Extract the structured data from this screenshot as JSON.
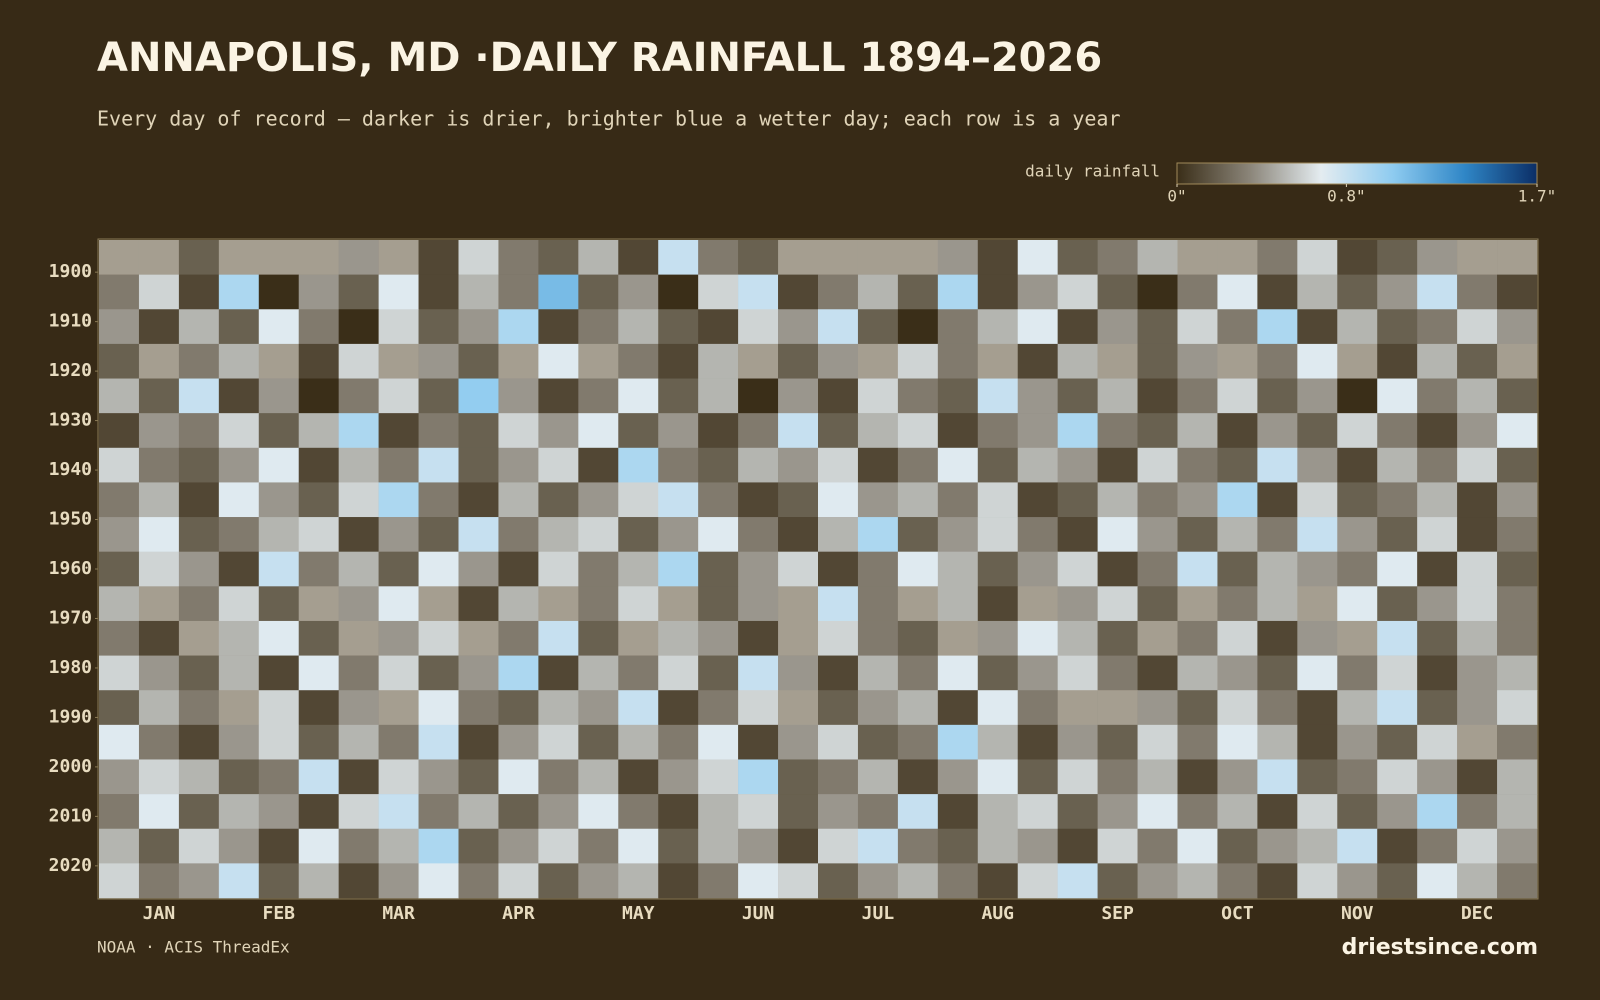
{
  "chart_data": {
    "type": "heatmap",
    "title": "ANNAPOLIS, MD ·DAILY RAINFALL 1894–2026",
    "subtitle": "Every day of record — darker is drier, brighter blue a wetter day; each row is a year",
    "colorbar_label": "daily rainfall",
    "source": "NOAA · ACIS ThreadEx",
    "credit": "driestsince.com",
    "categories": [
      "JAN",
      "FEB",
      "MAR",
      "APR",
      "MAY",
      "JUN",
      "JUL",
      "AUG",
      "SEP",
      "OCT",
      "NOV",
      "DEC"
    ],
    "y": [
      1894,
      1901,
      1908,
      1915,
      1922,
      1929,
      1936,
      1943,
      1950,
      1957,
      1964,
      1971,
      1978,
      1985,
      1992,
      1999,
      2006,
      2013,
      2020
    ],
    "ylim": [
      1894,
      2027
    ],
    "yticks": [
      1900,
      1910,
      1920,
      1930,
      1940,
      1950,
      1960,
      1970,
      1980,
      1990,
      2000,
      2010,
      2020
    ],
    "clim": [
      0,
      1.7
    ],
    "cticks": [
      {
        "value": 0,
        "label": "0\""
      },
      {
        "value": 0.8,
        "label": "0.8\""
      },
      {
        "value": 1.7,
        "label": "1.7\""
      }
    ],
    "colorscale": [
      "#3a2e18",
      "#8a8478",
      "#e4ecf0",
      "#8ecbf0",
      "#2f86c6",
      "#0b2e66"
    ],
    "missing_color": "#a59e90",
    "values": [
      [
        null,
        null,
        0.2,
        null,
        null,
        null,
        0.4,
        null,
        0.1,
        0.6,
        0.3,
        0.2,
        0.5,
        0.1,
        0.8,
        0.3,
        0.2,
        null,
        null,
        null,
        null,
        0.4,
        0.1,
        0.7,
        0.2,
        0.3,
        0.5,
        null,
        null,
        0.3,
        0.6,
        0.1,
        0.2,
        0.4,
        null,
        null
      ],
      [
        0.3,
        0.6,
        0.1,
        0.9,
        0,
        0.4,
        0.2,
        0.7,
        0.1,
        0.5,
        0.3,
        1.1,
        0.2,
        0.4,
        0,
        0.6,
        0.8,
        0.1,
        0.3,
        0.5,
        0.2,
        0.9,
        0.1,
        0.4,
        0.6,
        0.2,
        0,
        0.3,
        0.7,
        0.1,
        0.5,
        0.2,
        0.4,
        0.8,
        0.3,
        0.1
      ],
      [
        0.4,
        0.1,
        0.5,
        0.2,
        0.7,
        0.3,
        0,
        0.6,
        0.2,
        0.4,
        0.9,
        0.1,
        0.3,
        0.5,
        0.2,
        0.1,
        0.6,
        0.4,
        0.8,
        0.2,
        0,
        0.3,
        0.5,
        0.7,
        0.1,
        0.4,
        0.2,
        0.6,
        0.3,
        0.9,
        0.1,
        0.5,
        0.2,
        0.3,
        0.6,
        0.4
      ],
      [
        0.2,
        null,
        0.3,
        0.5,
        null,
        0.1,
        0.6,
        null,
        0.4,
        0.2,
        null,
        0.7,
        null,
        0.3,
        0.1,
        0.5,
        null,
        0.2,
        0.4,
        null,
        0.6,
        0.3,
        null,
        0.1,
        0.5,
        null,
        0.2,
        0.4,
        null,
        0.3,
        0.7,
        null,
        0.1,
        0.5,
        0.2,
        null
      ],
      [
        0.5,
        0.2,
        0.8,
        0.1,
        0.4,
        0,
        0.3,
        0.6,
        0.2,
        1.0,
        0.4,
        0.1,
        0.3,
        0.7,
        0.2,
        0.5,
        0,
        0.4,
        0.1,
        0.6,
        0.3,
        0.2,
        0.8,
        0.4,
        0.2,
        0.5,
        0.1,
        0.3,
        0.6,
        0.2,
        0.4,
        0,
        0.7,
        0.3,
        0.5,
        0.2
      ],
      [
        0.1,
        0.4,
        0.3,
        0.6,
        0.2,
        0.5,
        0.9,
        0.1,
        0.3,
        0.2,
        0.6,
        0.4,
        0.7,
        0.2,
        0.4,
        0.1,
        0.3,
        0.8,
        0.2,
        0.5,
        0.6,
        0.1,
        0.3,
        0.4,
        0.9,
        0.3,
        0.2,
        0.5,
        0.1,
        0.4,
        0.2,
        0.6,
        0.3,
        0.1,
        0.4,
        0.7
      ],
      [
        0.6,
        0.3,
        0.2,
        0.4,
        0.7,
        0.1,
        0.5,
        0.3,
        0.8,
        0.2,
        0.4,
        0.6,
        0.1,
        0.9,
        0.3,
        0.2,
        0.5,
        0.4,
        0.6,
        0.1,
        0.3,
        0.7,
        0.2,
        0.5,
        0.4,
        0.1,
        0.6,
        0.3,
        0.2,
        0.8,
        0.4,
        0.1,
        0.5,
        0.3,
        0.6,
        0.2
      ],
      [
        0.3,
        0.5,
        0.1,
        0.7,
        0.4,
        0.2,
        0.6,
        0.9,
        0.3,
        0.1,
        0.5,
        0.2,
        0.4,
        0.6,
        0.8,
        0.3,
        0.1,
        0.2,
        0.7,
        0.4,
        0.5,
        0.3,
        0.6,
        0.1,
        0.2,
        0.5,
        0.3,
        0.4,
        0.9,
        0.1,
        0.6,
        0.2,
        0.3,
        0.5,
        0.1,
        0.4
      ],
      [
        0.4,
        0.7,
        0.2,
        0.3,
        0.5,
        0.6,
        0.1,
        0.4,
        0.2,
        0.8,
        0.3,
        0.5,
        0.6,
        0.2,
        0.4,
        0.7,
        0.3,
        0.1,
        0.5,
        0.9,
        0.2,
        0.4,
        0.6,
        0.3,
        0.1,
        0.7,
        0.4,
        0.2,
        0.5,
        0.3,
        0.8,
        0.4,
        0.2,
        0.6,
        0.1,
        0.3
      ],
      [
        0.2,
        0.6,
        0.4,
        0.1,
        0.8,
        0.3,
        0.5,
        0.2,
        0.7,
        0.4,
        0.1,
        0.6,
        0.3,
        0.5,
        0.9,
        0.2,
        0.4,
        0.6,
        0.1,
        0.3,
        0.7,
        0.5,
        0.2,
        0.4,
        0.6,
        0.1,
        0.3,
        0.8,
        0.2,
        0.5,
        0.4,
        0.3,
        0.7,
        0.1,
        0.6,
        0.2
      ],
      [
        0.5,
        null,
        0.3,
        0.6,
        0.2,
        null,
        0.4,
        0.7,
        null,
        0.1,
        0.5,
        null,
        0.3,
        0.6,
        null,
        0.2,
        0.4,
        null,
        0.8,
        0.3,
        null,
        0.5,
        0.1,
        null,
        0.4,
        0.6,
        0.2,
        null,
        0.3,
        0.5,
        null,
        0.7,
        0.2,
        0.4,
        0.6,
        0.3
      ],
      [
        0.3,
        0.1,
        null,
        0.5,
        0.7,
        0.2,
        null,
        0.4,
        0.6,
        null,
        0.3,
        0.8,
        0.2,
        null,
        0.5,
        0.4,
        0.1,
        null,
        0.6,
        0.3,
        0.2,
        null,
        0.4,
        0.7,
        0.5,
        0.2,
        null,
        0.3,
        0.6,
        0.1,
        0.4,
        null,
        0.8,
        0.2,
        0.5,
        0.3
      ],
      [
        0.6,
        0.4,
        0.2,
        0.5,
        0.1,
        0.7,
        0.3,
        0.6,
        0.2,
        0.4,
        0.9,
        0.1,
        0.5,
        0.3,
        0.6,
        0.2,
        0.8,
        0.4,
        0.1,
        0.5,
        0.3,
        0.7,
        0.2,
        0.4,
        0.6,
        0.3,
        0.1,
        0.5,
        0.4,
        0.2,
        0.7,
        0.3,
        0.6,
        0.1,
        0.4,
        0.5
      ],
      [
        0.2,
        0.5,
        0.3,
        null,
        0.6,
        0.1,
        0.4,
        null,
        0.7,
        0.3,
        0.2,
        0.5,
        0.4,
        0.8,
        0.1,
        0.3,
        0.6,
        null,
        0.2,
        0.4,
        0.5,
        0.1,
        0.7,
        0.3,
        null,
        null,
        0.4,
        0.2,
        0.6,
        0.3,
        0.1,
        0.5,
        0.8,
        0.2,
        0.4,
        0.6
      ],
      [
        0.7,
        0.3,
        0.1,
        0.4,
        0.6,
        0.2,
        0.5,
        0.3,
        0.8,
        0.1,
        0.4,
        0.6,
        0.2,
        0.5,
        0.3,
        0.7,
        0.1,
        0.4,
        0.6,
        0.2,
        0.3,
        0.9,
        0.5,
        0.1,
        0.4,
        0.2,
        0.6,
        0.3,
        0.7,
        0.5,
        0.1,
        0.4,
        0.2,
        0.6,
        null,
        0.3
      ],
      [
        0.4,
        0.6,
        0.5,
        0.2,
        0.3,
        0.8,
        0.1,
        0.6,
        0.4,
        0.2,
        0.7,
        0.3,
        0.5,
        0.1,
        0.4,
        0.6,
        0.9,
        0.2,
        0.3,
        0.5,
        0.1,
        0.4,
        0.7,
        0.2,
        0.6,
        0.3,
        0.5,
        0.1,
        0.4,
        0.8,
        0.2,
        0.3,
        0.6,
        0.4,
        0.1,
        0.5
      ],
      [
        0.3,
        0.7,
        0.2,
        0.5,
        0.4,
        0.1,
        0.6,
        0.8,
        0.3,
        0.5,
        0.2,
        0.4,
        0.7,
        0.3,
        0.1,
        0.5,
        0.6,
        0.2,
        0.4,
        0.3,
        0.8,
        0.1,
        0.5,
        0.6,
        0.2,
        0.4,
        0.7,
        0.3,
        0.5,
        0.1,
        0.6,
        0.2,
        0.4,
        0.9,
        0.3,
        0.5
      ],
      [
        0.5,
        0.2,
        0.6,
        0.4,
        0.1,
        0.7,
        0.3,
        0.5,
        0.9,
        0.2,
        0.4,
        0.6,
        0.3,
        0.7,
        0.2,
        0.5,
        0.4,
        0.1,
        0.6,
        0.8,
        0.3,
        0.2,
        0.5,
        0.4,
        0.1,
        0.6,
        0.3,
        0.7,
        0.2,
        0.4,
        0.5,
        0.8,
        0.1,
        0.3,
        0.6,
        0.4
      ],
      [
        0.6,
        0.3,
        0.4,
        0.8,
        0.2,
        0.5,
        0.1,
        0.4,
        0.7,
        0.3,
        0.6,
        0.2,
        0.4,
        0.5,
        0.1,
        0.3,
        0.7,
        0.6,
        0.2,
        0.4,
        0.5,
        0.3,
        0.1,
        0.6,
        0.8,
        0.2,
        0.4,
        0.5,
        0.3,
        0.1,
        0.6,
        0.4,
        0.2,
        0.7,
        0.5,
        0.3
      ]
    ]
  }
}
